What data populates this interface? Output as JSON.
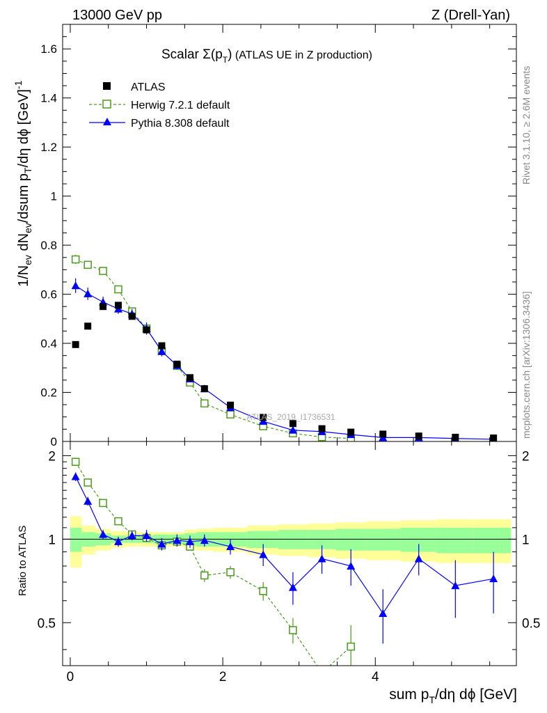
{
  "header": {
    "left": "13000 GeV pp",
    "right": "Z (Drell-Yan)"
  },
  "plot_title": {
    "main": "Scalar Σ(p",
    "sub": "T",
    "close": ")",
    "rest": " (ATLAS UE in Z production)"
  },
  "side_labels": {
    "rivet": "Rivet 3.1.10, ≥ 2.6M events",
    "mcplots": "mcplots.cern.ch [arXiv:1306.3436]"
  },
  "watermark": "ATLAS_2019_I1736531",
  "axis_labels": {
    "y_main": "1/N_ev dN_ev/dsum p_T/dη dϕ [GeV]^-1",
    "y_ratio": "Ratio to ATLAS",
    "x": "sum p_T/dη dϕ [GeV]"
  },
  "legend": [
    {
      "label": "ATLAS",
      "marker": "square-filled",
      "color": "#000000"
    },
    {
      "label": "Herwig 7.2.1 default",
      "marker": "square-open",
      "color": "#4a9a1c"
    },
    {
      "label": "Pythia 8.308 default",
      "marker": "triangle-filled",
      "color": "#0000ff"
    }
  ],
  "chart_data": [
    {
      "type": "scatter",
      "panel": "main",
      "xlim": [
        -0.1,
        5.85
      ],
      "ylim": [
        0,
        1.7
      ],
      "xticks": [
        "0",
        "2",
        "4"
      ],
      "yticks": [
        "0",
        "0.2",
        "0.4",
        "0.6",
        "0.8",
        "1",
        "1.2",
        "1.4",
        "1.6"
      ],
      "series": [
        {
          "name": "ATLAS",
          "color": "#000000",
          "x": [
            0.07,
            0.23,
            0.43,
            0.63,
            0.81,
            1.0,
            1.2,
            1.4,
            1.57,
            1.76,
            2.1,
            2.53,
            2.92,
            3.3,
            3.68,
            4.1,
            4.57,
            5.05,
            5.55
          ],
          "y": [
            0.395,
            0.47,
            0.55,
            0.555,
            0.51,
            0.455,
            0.39,
            0.315,
            0.26,
            0.215,
            0.148,
            0.098,
            0.073,
            0.052,
            0.038,
            0.03,
            0.022,
            0.017,
            0.014
          ],
          "err": [
            0.005,
            0.005,
            0.005,
            0.005,
            0.005,
            0.005,
            0.005,
            0.004,
            0.004,
            0.004,
            0.003,
            0.003,
            0.003,
            0.002,
            0.002,
            0.002,
            0.002,
            0.002,
            0.002
          ]
        },
        {
          "name": "Herwig 7.2.1 default",
          "color": "#4a9a1c",
          "x": [
            0.07,
            0.23,
            0.43,
            0.63,
            0.81,
            1.0,
            1.2,
            1.4,
            1.57,
            1.76,
            2.1,
            2.53,
            2.92,
            3.3,
            3.68
          ],
          "y": [
            0.742,
            0.72,
            0.695,
            0.62,
            0.53,
            0.46,
            0.368,
            0.308,
            0.24,
            0.155,
            0.11,
            0.062,
            0.033,
            0.018,
            0.012
          ],
          "err": [
            0.018,
            0.015,
            0.014,
            0.013,
            0.013,
            0.012,
            0.012,
            0.011,
            0.01,
            0.009,
            0.007,
            0.005,
            0.004,
            0.003,
            0.003
          ]
        },
        {
          "name": "Pythia 8.308 default",
          "color": "#0000ff",
          "x": [
            0.07,
            0.23,
            0.43,
            0.63,
            0.81,
            1.0,
            1.2,
            1.4,
            1.57,
            1.76,
            2.1,
            2.53,
            2.92,
            3.3,
            3.68,
            4.1,
            4.57,
            5.05,
            5.55
          ],
          "y": [
            0.635,
            0.602,
            0.568,
            0.54,
            0.52,
            0.46,
            0.367,
            0.31,
            0.255,
            0.215,
            0.138,
            0.082,
            0.046,
            0.04,
            0.028,
            0.016,
            0.016,
            0.012,
            0.009
          ],
          "err": [
            0.03,
            0.025,
            0.022,
            0.02,
            0.02,
            0.025,
            0.02,
            0.016,
            0.013,
            0.011,
            0.009,
            0.007,
            0.006,
            0.006,
            0.005,
            0.004,
            0.004,
            0.003,
            0.003
          ]
        }
      ]
    },
    {
      "type": "scatter",
      "panel": "ratio",
      "xlim": [
        -0.1,
        5.85
      ],
      "ylim": [
        0.35,
        2.25
      ],
      "yticks": [
        "0.5",
        "1",
        "2"
      ],
      "reference_line": 1,
      "bands": {
        "edges": [
          0.0,
          0.15,
          0.33,
          0.53,
          0.72,
          0.9,
          1.1,
          1.3,
          1.5,
          1.65,
          1.87,
          2.32,
          2.73,
          3.12,
          3.48,
          3.88,
          4.33,
          4.8,
          5.3,
          5.78
        ],
        "inner_lo": [
          0.9,
          0.94,
          0.95,
          0.97,
          0.97,
          0.97,
          0.96,
          0.96,
          0.95,
          0.94,
          0.94,
          0.93,
          0.92,
          0.92,
          0.91,
          0.91,
          0.9,
          0.89,
          0.89
        ],
        "inner_hi": [
          1.1,
          1.06,
          1.05,
          1.03,
          1.03,
          1.03,
          1.04,
          1.04,
          1.05,
          1.06,
          1.06,
          1.07,
          1.08,
          1.08,
          1.09,
          1.09,
          1.1,
          1.1,
          1.1
        ],
        "outer_lo": [
          0.79,
          0.88,
          0.91,
          0.93,
          0.94,
          0.94,
          0.94,
          0.94,
          0.92,
          0.91,
          0.9,
          0.88,
          0.87,
          0.86,
          0.85,
          0.84,
          0.83,
          0.82,
          0.82
        ],
        "outer_hi": [
          1.21,
          1.12,
          1.09,
          1.07,
          1.06,
          1.06,
          1.06,
          1.06,
          1.08,
          1.09,
          1.1,
          1.12,
          1.13,
          1.14,
          1.15,
          1.16,
          1.17,
          1.18,
          1.18
        ]
      },
      "series": [
        {
          "name": "Herwig 7.2.1 default",
          "color": "#4a9a1c",
          "x": [
            0.07,
            0.23,
            0.43,
            0.63,
            0.81,
            1.0,
            1.2,
            1.4,
            1.57,
            1.76,
            2.1,
            2.53,
            2.92,
            3.3,
            3.68
          ],
          "y": [
            1.9,
            1.6,
            1.35,
            1.16,
            1.04,
            1.01,
            0.95,
            0.98,
            0.94,
            0.74,
            0.76,
            0.65,
            0.47,
            0.33,
            0.41
          ],
          "err": [
            0.04,
            0.03,
            0.03,
            0.03,
            0.03,
            0.03,
            0.03,
            0.03,
            0.03,
            0.04,
            0.04,
            0.05,
            0.05,
            0.06,
            0.08
          ]
        },
        {
          "name": "Pythia 8.308 default",
          "color": "#0000ff",
          "x": [
            0.07,
            0.23,
            0.43,
            0.63,
            0.81,
            1.0,
            1.2,
            1.4,
            1.57,
            1.76,
            2.1,
            2.53,
            2.92,
            3.3,
            3.68,
            4.1,
            4.57,
            5.05,
            5.55
          ],
          "y": [
            1.68,
            1.37,
            1.04,
            0.98,
            1.03,
            1.03,
            0.96,
            0.99,
            0.98,
            0.99,
            0.94,
            0.88,
            0.67,
            0.85,
            0.8,
            0.54,
            0.85,
            0.68,
            0.72
          ],
          "err": [
            0.06,
            0.05,
            0.04,
            0.04,
            0.04,
            0.05,
            0.05,
            0.05,
            0.05,
            0.05,
            0.06,
            0.08,
            0.09,
            0.1,
            0.12,
            0.12,
            0.11,
            0.16,
            0.18
          ]
        }
      ]
    }
  ]
}
